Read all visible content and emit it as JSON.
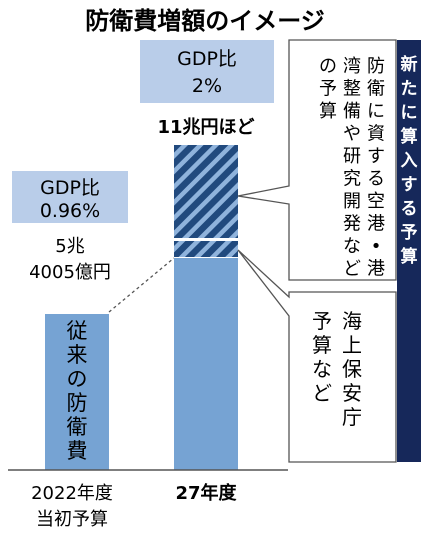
{
  "title": "防衛費増額のイメージ",
  "chart_data": {
    "type": "bar",
    "categories": [
      "2022年度\n当初予算",
      "27年度"
    ],
    "units": "億円",
    "series": [
      {
        "label": "従来の防衛費",
        "values": [
          54005,
          54005
        ]
      },
      {
        "label": "海上保安庁予算など",
        "values": [
          0,
          6000
        ]
      },
      {
        "label": "防衛に資する空港・港湾整備や研究開発などの予算",
        "values": [
          0,
          50000
        ]
      }
    ],
    "ylim": [
      0,
      110000
    ],
    "bar_labels": [
      {
        "gdp": "GDP比\n0.96%",
        "amount": "5兆\n4005億円"
      },
      {
        "gdp": "GDP比\n2%",
        "amount": "11兆円ほど"
      }
    ]
  },
  "annotations": {
    "base_label": "従来の防衛費",
    "new_budget_note": "防衛に資する空港・港湾整備や研究開発などの予算",
    "coast_guard_note": "海上保安庁予算など",
    "side_banner": "新たに算入する予算"
  },
  "colors": {
    "base": "#76a3d3",
    "hatch_bg": "#214a7e",
    "hatch_line": "#8fb3dc",
    "gdp_box": "#b9cde9",
    "banner": "#16285a",
    "axis": "#555555"
  }
}
